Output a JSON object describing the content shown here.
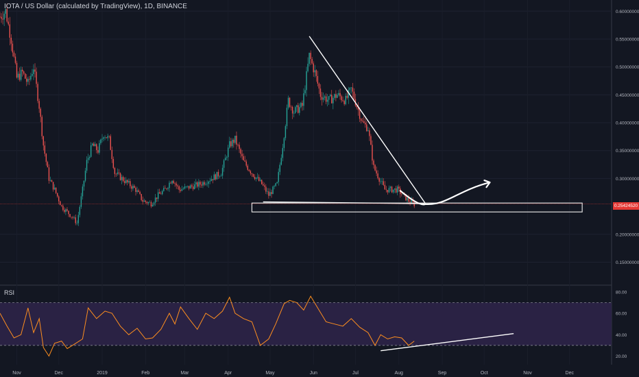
{
  "header": {
    "title": "IOTA / US Dollar (calculated by TradingView), 1D, BINANCE"
  },
  "rsi_panel": {
    "label": "RSI"
  },
  "price_axis": {
    "ticks": [
      "0.60000000",
      "0.55000000",
      "0.50000000",
      "0.45000000",
      "0.40000000",
      "0.35000000",
      "0.30000000",
      "0.20000000",
      "0.15000000"
    ],
    "current_price": "0.25424520"
  },
  "rsi_axis": {
    "ticks": [
      "80.00",
      "60.00",
      "40.00",
      "20.00"
    ]
  },
  "time_axis": {
    "ticks": [
      "Nov",
      "Dec",
      "2019",
      "Feb",
      "Mar",
      "Apr",
      "May",
      "Jun",
      "Jul",
      "Aug",
      "Sep",
      "Oct",
      "Nov",
      "Dec"
    ]
  },
  "colors": {
    "background": "#131722",
    "up": "#26a69a",
    "down": "#ef5350",
    "rsi_line": "#ff8f1f",
    "rsi_band": "#2a2244",
    "annotation": "#ffffff",
    "price_line": "#e53935"
  },
  "chart_data": [
    {
      "type": "candlestick",
      "x_range": [
        "2018-10-20",
        "2019-12-31"
      ],
      "ylim": [
        0.11,
        0.62
      ],
      "y_ticks": [
        0.15,
        0.2,
        0.3,
        0.35,
        0.4,
        0.45,
        0.5,
        0.55,
        0.6
      ],
      "current_price": 0.2542452,
      "close_path": [
        [
          "2018-10-20",
          0.59
        ],
        [
          "2018-10-24",
          0.6
        ],
        [
          "2018-10-28",
          0.55
        ],
        [
          "2018-11-01",
          0.48
        ],
        [
          "2018-11-05",
          0.49
        ],
        [
          "2018-11-09",
          0.47
        ],
        [
          "2018-11-13",
          0.5
        ],
        [
          "2018-11-17",
          0.43
        ],
        [
          "2018-11-20",
          0.36
        ],
        [
          "2018-11-24",
          0.3
        ],
        [
          "2018-11-28",
          0.28
        ],
        [
          "2018-12-03",
          0.25
        ],
        [
          "2018-12-07",
          0.24
        ],
        [
          "2018-12-11",
          0.23
        ],
        [
          "2018-12-14",
          0.22
        ],
        [
          "2018-12-18",
          0.28
        ],
        [
          "2018-12-21",
          0.33
        ],
        [
          "2018-12-25",
          0.36
        ],
        [
          "2018-12-29",
          0.35
        ],
        [
          "2019-01-02",
          0.38
        ],
        [
          "2019-01-06",
          0.37
        ],
        [
          "2019-01-10",
          0.31
        ],
        [
          "2019-01-15",
          0.3
        ],
        [
          "2019-01-20",
          0.29
        ],
        [
          "2019-01-25",
          0.28
        ],
        [
          "2019-01-30",
          0.26
        ],
        [
          "2019-02-05",
          0.255
        ],
        [
          "2019-02-10",
          0.27
        ],
        [
          "2019-02-15",
          0.28
        ],
        [
          "2019-02-20",
          0.3
        ],
        [
          "2019-02-25",
          0.28
        ],
        [
          "2019-03-05",
          0.285
        ],
        [
          "2019-03-12",
          0.29
        ],
        [
          "2019-03-20",
          0.3
        ],
        [
          "2019-03-27",
          0.31
        ],
        [
          "2019-04-02",
          0.36
        ],
        [
          "2019-04-06",
          0.37
        ],
        [
          "2019-04-12",
          0.33
        ],
        [
          "2019-04-18",
          0.31
        ],
        [
          "2019-04-25",
          0.29
        ],
        [
          "2019-04-30",
          0.27
        ],
        [
          "2019-05-06",
          0.29
        ],
        [
          "2019-05-10",
          0.36
        ],
        [
          "2019-05-14",
          0.44
        ],
        [
          "2019-05-18",
          0.42
        ],
        [
          "2019-05-24",
          0.43
        ],
        [
          "2019-05-29",
          0.52
        ],
        [
          "2019-06-02",
          0.49
        ],
        [
          "2019-06-06",
          0.45
        ],
        [
          "2019-06-12",
          0.44
        ],
        [
          "2019-06-18",
          0.45
        ],
        [
          "2019-06-24",
          0.44
        ],
        [
          "2019-06-28",
          0.46
        ],
        [
          "2019-07-02",
          0.43
        ],
        [
          "2019-07-06",
          0.4
        ],
        [
          "2019-07-10",
          0.39
        ],
        [
          "2019-07-14",
          0.32
        ],
        [
          "2019-07-18",
          0.3
        ],
        [
          "2019-07-22",
          0.28
        ],
        [
          "2019-07-26",
          0.28
        ],
        [
          "2019-07-31",
          0.28
        ],
        [
          "2019-08-04",
          0.27
        ],
        [
          "2019-08-08",
          0.26
        ],
        [
          "2019-08-12",
          0.254
        ]
      ],
      "volatility": 0.025,
      "annotations": [
        {
          "type": "line",
          "from": [
            "2019-05-29",
            0.555
          ],
          "to": [
            "2019-08-20",
            0.255
          ]
        },
        {
          "type": "line",
          "from": [
            "2019-04-26",
            0.258
          ],
          "to": [
            "2019-08-20",
            0.255
          ]
        },
        {
          "type": "rectangle",
          "from": [
            "2019-04-18",
            0.256
          ],
          "to": [
            "2019-12-10",
            0.24
          ]
        },
        {
          "type": "arrow",
          "points": [
            [
              "2019-08-02",
              0.278
            ],
            [
              "2019-08-20",
              0.254
            ],
            [
              "2019-09-14",
              0.278
            ],
            [
              "2019-10-05",
              0.293
            ]
          ]
        }
      ]
    },
    {
      "type": "line",
      "name": "RSI",
      "ylim": [
        12,
        85
      ],
      "y_ticks": [
        20,
        40,
        60,
        80
      ],
      "bands": [
        30,
        70
      ],
      "values": [
        [
          "2018-10-20",
          60
        ],
        [
          "2018-10-25",
          48
        ],
        [
          "2018-10-30",
          37
        ],
        [
          "2018-11-04",
          40
        ],
        [
          "2018-11-09",
          65
        ],
        [
          "2018-11-13",
          42
        ],
        [
          "2018-11-17",
          55
        ],
        [
          "2018-11-20",
          28
        ],
        [
          "2018-11-24",
          20
        ],
        [
          "2018-11-28",
          32
        ],
        [
          "2018-12-03",
          34
        ],
        [
          "2018-12-07",
          27
        ],
        [
          "2018-12-12",
          31
        ],
        [
          "2018-12-18",
          36
        ],
        [
          "2018-12-22",
          65
        ],
        [
          "2018-12-28",
          55
        ],
        [
          "2019-01-03",
          62
        ],
        [
          "2019-01-08",
          60
        ],
        [
          "2019-01-14",
          48
        ],
        [
          "2019-01-20",
          40
        ],
        [
          "2019-01-26",
          46
        ],
        [
          "2019-02-01",
          36
        ],
        [
          "2019-02-06",
          37
        ],
        [
          "2019-02-12",
          45
        ],
        [
          "2019-02-18",
          60
        ],
        [
          "2019-02-22",
          50
        ],
        [
          "2019-02-26",
          66
        ],
        [
          "2019-03-04",
          55
        ],
        [
          "2019-03-10",
          45
        ],
        [
          "2019-03-16",
          60
        ],
        [
          "2019-03-22",
          55
        ],
        [
          "2019-03-28",
          62
        ],
        [
          "2019-04-02",
          75
        ],
        [
          "2019-04-06",
          60
        ],
        [
          "2019-04-12",
          55
        ],
        [
          "2019-04-18",
          52
        ],
        [
          "2019-04-24",
          30
        ],
        [
          "2019-04-30",
          36
        ],
        [
          "2019-05-05",
          50
        ],
        [
          "2019-05-11",
          69
        ],
        [
          "2019-05-15",
          72
        ],
        [
          "2019-05-20",
          70
        ],
        [
          "2019-05-25",
          63
        ],
        [
          "2019-05-30",
          76
        ],
        [
          "2019-06-04",
          65
        ],
        [
          "2019-06-10",
          52
        ],
        [
          "2019-06-16",
          50
        ],
        [
          "2019-06-22",
          48
        ],
        [
          "2019-06-28",
          55
        ],
        [
          "2019-07-04",
          47
        ],
        [
          "2019-07-10",
          42
        ],
        [
          "2019-07-15",
          30
        ],
        [
          "2019-07-19",
          40
        ],
        [
          "2019-07-24",
          36
        ],
        [
          "2019-07-29",
          38
        ],
        [
          "2019-08-03",
          37
        ],
        [
          "2019-08-08",
          30
        ],
        [
          "2019-08-12",
          34
        ]
      ],
      "annotations": [
        {
          "type": "line",
          "from": [
            "2019-07-19",
            25
          ],
          "to": [
            "2019-10-22",
            41
          ]
        }
      ]
    }
  ]
}
